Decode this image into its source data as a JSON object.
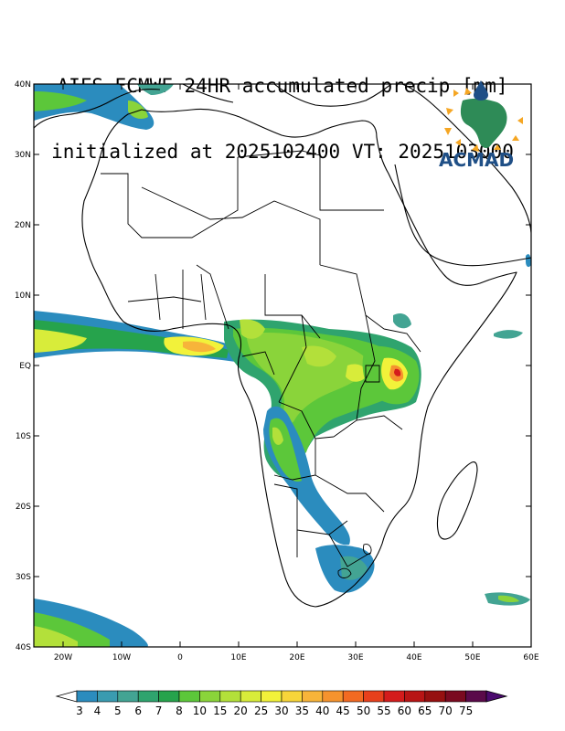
{
  "title": {
    "line1": "AIFS-ECMWF 24HR accumulated precip [mm]",
    "line2": "initialized at 2025102400 VT: 2025103000"
  },
  "logo": {
    "text": "ACMAD",
    "color": "#1f4f86",
    "accent": "#f5a623",
    "land": "#2e8b57"
  },
  "axes": {
    "lat_labels": [
      "40N",
      "30N",
      "20N",
      "10N",
      "EQ",
      "10S",
      "20S",
      "30S",
      "40S"
    ],
    "lon_labels": [
      "20W",
      "10W",
      "0",
      "10E",
      "20E",
      "30E",
      "40E",
      "50E",
      "60E"
    ],
    "lat_range": [
      -40,
      40
    ],
    "lon_range": [
      -25,
      60
    ]
  },
  "colorbar": {
    "levels": [
      "3",
      "4",
      "5",
      "6",
      "7",
      "8",
      "10",
      "15",
      "20",
      "25",
      "30",
      "35",
      "40",
      "45",
      "50",
      "55",
      "60",
      "65",
      "70",
      "75"
    ],
    "colors": [
      "#2b8cbe",
      "#3a9bb0",
      "#43a493",
      "#2fa46e",
      "#26a34c",
      "#5cc73a",
      "#8ad43a",
      "#b3e03a",
      "#d8ec3a",
      "#f2f23a",
      "#f7d53a",
      "#f7b43a",
      "#f5932e",
      "#f26a22",
      "#e8401c",
      "#d41c1c",
      "#b81515",
      "#961010",
      "#7a0a20",
      "#5a0a4a"
    ],
    "under_color": "#ffffff",
    "over_color": "#4b0a6e"
  }
}
